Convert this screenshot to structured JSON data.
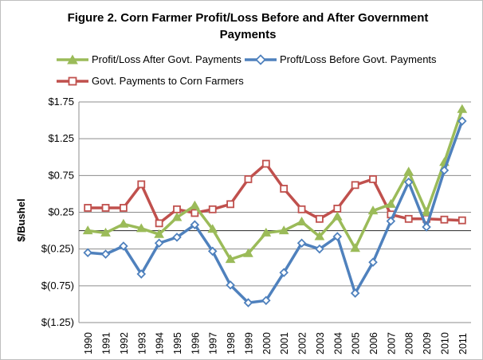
{
  "chart_data": {
    "type": "line",
    "title_line1": "Figure 2. Corn Farmer Profit/Loss Before and After Government",
    "title_line2": "Payments",
    "ylabel": "$/Bushel",
    "xlabel": "",
    "ylim": [
      -1.25,
      1.75
    ],
    "yticks": [
      1.75,
      1.25,
      0.75,
      0.25,
      -0.25,
      -0.75,
      -1.25
    ],
    "ytick_labels": [
      "$1.75",
      "$1.25",
      "$0.75",
      "$0.25",
      "$(0.25)",
      "$(0.75)",
      "$(1.25)"
    ],
    "categories": [
      "1990",
      "1991",
      "1992",
      "1993",
      "1994",
      "1995",
      "1996",
      "1997",
      "1998",
      "1999",
      "2000",
      "2001",
      "2002",
      "2003",
      "2004",
      "2005",
      "2006",
      "2007",
      "2008",
      "2009",
      "2010",
      "2011"
    ],
    "grid": "horizontal",
    "legend_position": "top",
    "series": [
      {
        "name": "Profit/Loss After Govt. Payments",
        "color": "#9bbb59",
        "marker": "triangle",
        "values": [
          0.0,
          -0.03,
          0.09,
          0.03,
          -0.05,
          0.18,
          0.34,
          0.02,
          -0.39,
          -0.31,
          -0.03,
          0.0,
          0.12,
          -0.08,
          0.19,
          -0.24,
          0.27,
          0.36,
          0.8,
          0.25,
          0.93,
          1.65
        ]
      },
      {
        "name": "Proft/Loss Before Govt. Payments",
        "color": "#4f81bd",
        "marker": "diamond",
        "values": [
          -0.3,
          -0.32,
          -0.21,
          -0.59,
          -0.17,
          -0.09,
          0.08,
          -0.28,
          -0.74,
          -0.98,
          -0.95,
          -0.57,
          -0.17,
          -0.25,
          -0.08,
          -0.85,
          -0.43,
          0.13,
          0.66,
          0.05,
          0.82,
          1.49
        ]
      },
      {
        "name": "Govt. Payments to Corn Farmers",
        "color": "#c0504d",
        "marker": "square",
        "values": [
          0.31,
          0.31,
          0.31,
          0.63,
          0.1,
          0.29,
          0.24,
          0.29,
          0.36,
          0.7,
          0.91,
          0.57,
          0.29,
          0.16,
          0.3,
          0.62,
          0.7,
          0.22,
          0.16,
          0.16,
          0.15,
          0.14
        ]
      }
    ]
  }
}
